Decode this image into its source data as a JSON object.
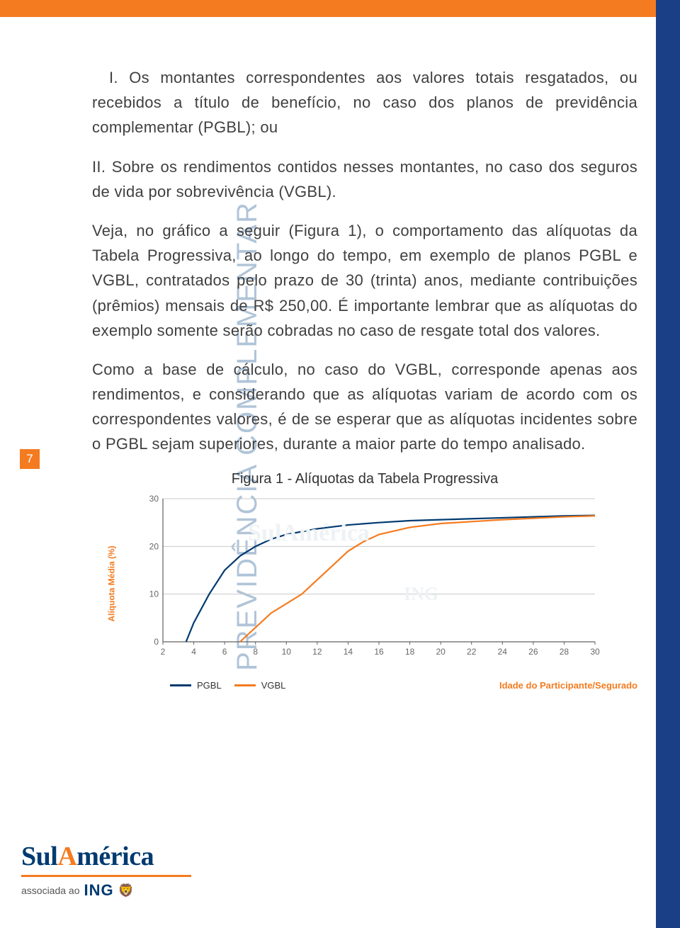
{
  "page": {
    "number": "7",
    "side_label": "PREVIDÊNCIA  COMPLEMENTAR",
    "accent_color": "#f47b20",
    "blue_stripe_color": "#1b3f86",
    "side_text_color": "#b0c4d8"
  },
  "body": {
    "p1": "I. Os montantes correspondentes aos valores totais resgatados, ou recebidos a título de benefício, no caso dos planos de previdência complementar (PGBL); ou",
    "p2": "II. Sobre os rendimentos contidos nesses montantes, no caso dos seguros de vida por sobrevivência (VGBL).",
    "p3": "Veja, no gráfico a seguir (Figura 1), o comportamento das alíquotas da Tabela Progressiva, ao longo do tempo, em exemplo de planos PGBL e VGBL, contratados pelo prazo de 30 (trinta) anos, mediante contribuições (prêmios) mensais de R$ 250,00. É importante lembrar que as alíquotas do exemplo somente serão cobradas no caso de resgate total dos valores.",
    "p4": "Como a base de cálculo, no caso do VGBL, corresponde apenas aos rendimentos, e considerando que as alíquotas variam de acordo com os correspondentes valores, é de se esperar que as alíquotas incidentes sobre o PGBL sejam superiores, durante a maior parte do tempo analisado."
  },
  "chart": {
    "title": "Figura 1 - Alíquotas da Tabela Progressiva",
    "type": "line",
    "y_label": "Alíquota Média (%)",
    "x_label": "Idade do Participante/Segurado",
    "xlim": [
      2,
      30
    ],
    "ylim": [
      0,
      30
    ],
    "x_ticks": [
      2,
      4,
      6,
      8,
      10,
      12,
      14,
      16,
      18,
      20,
      22,
      24,
      26,
      28,
      30
    ],
    "y_ticks": [
      0,
      10,
      20,
      30
    ],
    "grid_color": "#c8c8c8",
    "background_color": "#ffffff",
    "axis_color": "#606060",
    "line_width": 2.2,
    "series": [
      {
        "name": "PGBL",
        "color": "#003a70",
        "points": [
          [
            3.5,
            0
          ],
          [
            4,
            4
          ],
          [
            5,
            10
          ],
          [
            6,
            15
          ],
          [
            7,
            18
          ],
          [
            8,
            20
          ],
          [
            9,
            21.5
          ],
          [
            10,
            22.5
          ],
          [
            12,
            23.7
          ],
          [
            14,
            24.5
          ],
          [
            16,
            25
          ],
          [
            18,
            25.4
          ],
          [
            20,
            25.6
          ],
          [
            22,
            25.8
          ],
          [
            24,
            26.0
          ],
          [
            26,
            26.2
          ],
          [
            28,
            26.4
          ],
          [
            30,
            26.5
          ]
        ]
      },
      {
        "name": "VGBL",
        "color": "#f47b20",
        "points": [
          [
            7,
            0
          ],
          [
            8,
            3
          ],
          [
            9,
            6
          ],
          [
            10,
            8
          ],
          [
            11,
            10
          ],
          [
            12,
            13
          ],
          [
            13,
            16
          ],
          [
            14,
            19
          ],
          [
            15,
            21
          ],
          [
            16,
            22.5
          ],
          [
            18,
            24
          ],
          [
            20,
            24.8
          ],
          [
            22,
            25.2
          ],
          [
            24,
            25.6
          ],
          [
            26,
            25.9
          ],
          [
            28,
            26.2
          ],
          [
            30,
            26.4
          ]
        ]
      }
    ],
    "legend": {
      "pgbl": "PGBL",
      "vgbl": "VGBL"
    }
  },
  "logo": {
    "main": "SulAmérica",
    "sub_prefix": "associada ao",
    "ing": "ING"
  }
}
